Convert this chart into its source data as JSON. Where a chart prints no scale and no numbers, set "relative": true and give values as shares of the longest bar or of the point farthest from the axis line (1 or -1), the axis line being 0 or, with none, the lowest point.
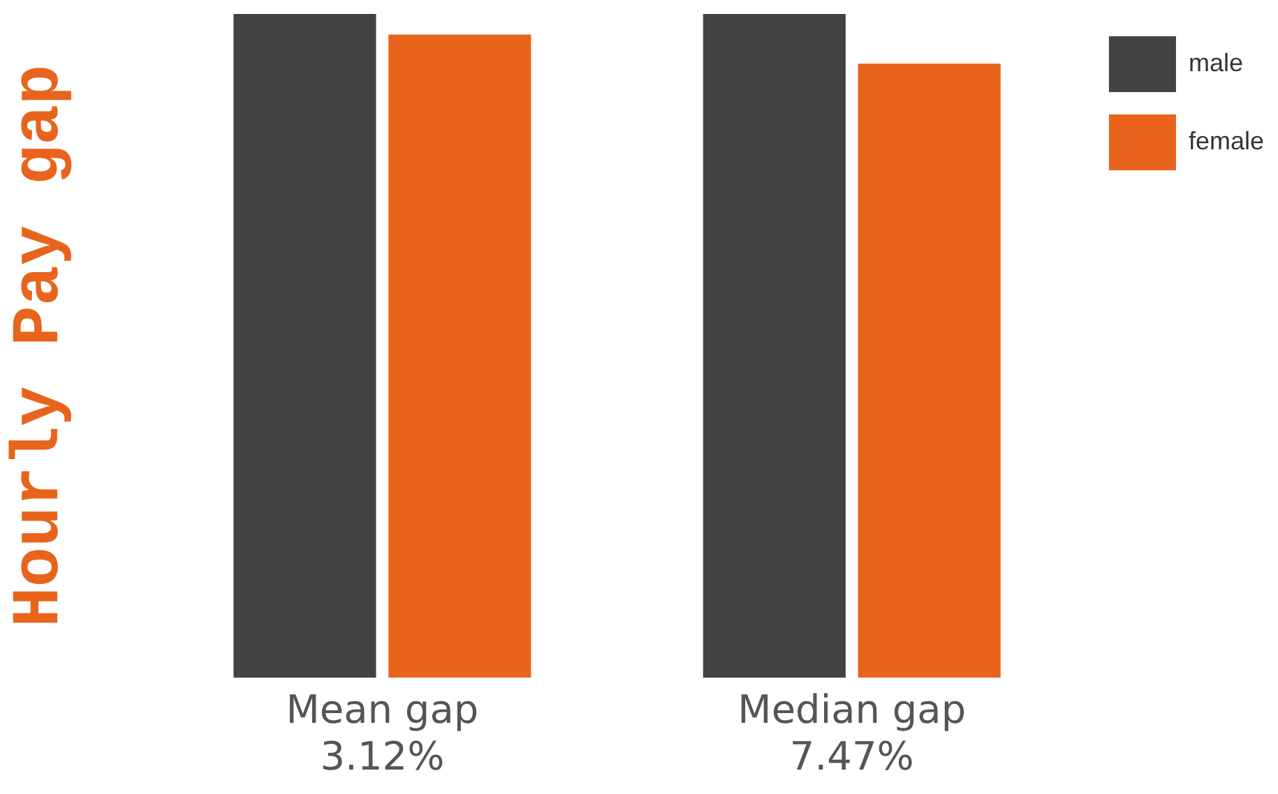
{
  "chart_data": {
    "type": "bar",
    "relative": true,
    "ylabel": "Hourly Pay gap",
    "categories": [
      "Mean gap\n3.12%",
      "Median gap\n7.47%"
    ],
    "series": [
      {
        "name": "male",
        "color": "#454341",
        "values": [
          1,
          1
        ]
      },
      {
        "name": "female",
        "color": "#e8641c",
        "values": [
          0.969,
          0.925
        ]
      }
    ],
    "legend": "top right",
    "grid": false
  }
}
